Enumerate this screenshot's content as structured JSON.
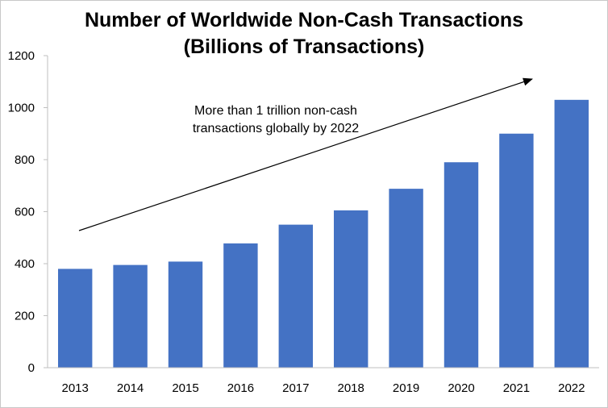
{
  "chart_data": {
    "type": "bar",
    "title_line1": "Number of Worldwide Non-Cash Transactions",
    "title_line2": "(Billions of Transactions)",
    "categories": [
      "2013",
      "2014",
      "2015",
      "2016",
      "2017",
      "2018",
      "2019",
      "2020",
      "2021",
      "2022"
    ],
    "values": [
      380,
      395,
      408,
      478,
      550,
      605,
      688,
      790,
      900,
      1030
    ],
    "ylim": [
      0,
      1200
    ],
    "yticks": [
      0,
      200,
      400,
      600,
      800,
      1000,
      1200
    ],
    "grid": false,
    "bar_color": "#4472c4",
    "annotation": {
      "line1": "More than 1 trillion non-cash",
      "line2": "transactions globally by 2022"
    }
  }
}
